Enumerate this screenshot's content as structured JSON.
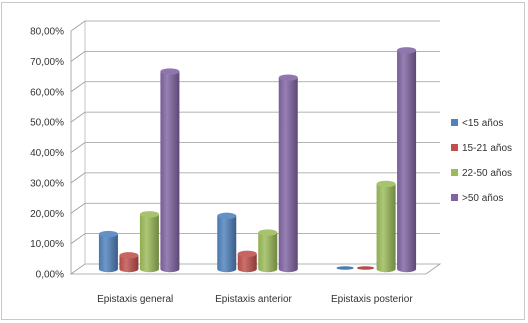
{
  "chart_data": {
    "type": "bar",
    "categories": [
      "Epistaxis general",
      "Epistaxis anterior",
      "Epistaxis posterior"
    ],
    "series": [
      {
        "name": "<15 años",
        "values": [
          11.5,
          17.5,
          0.0
        ],
        "color": "#4f81bd"
      },
      {
        "name": "15-21 años",
        "values": [
          4.5,
          5.0,
          0.0
        ],
        "color": "#c0504d"
      },
      {
        "name": "22-50 años",
        "values": [
          18.0,
          12.0,
          28.0
        ],
        "color": "#9bbb59"
      },
      {
        "name": ">50 años",
        "values": [
          65.0,
          63.0,
          72.0
        ],
        "color": "#8064a2"
      }
    ],
    "yticks": [
      "0,00%",
      "10,00%",
      "20,00%",
      "30,00%",
      "40,00%",
      "50,00%",
      "60,00%",
      "70,00%",
      "80,00%"
    ],
    "ylim": [
      0,
      80
    ],
    "title": "",
    "xlabel": "",
    "ylabel": "",
    "grid": true,
    "legend_position": "right"
  }
}
